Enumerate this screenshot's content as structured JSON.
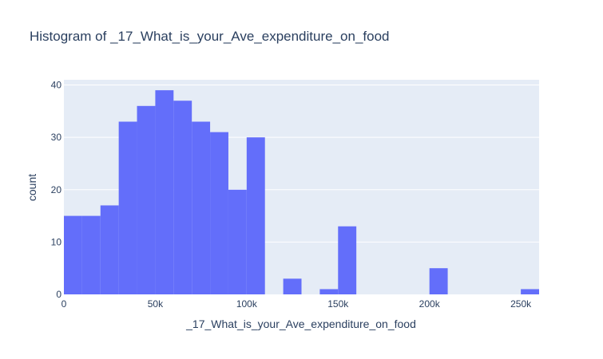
{
  "chart_data": {
    "type": "bar",
    "title": "Histogram of _17_What_is_your_Ave_expenditure_on_food",
    "xlabel": "_17_What_is_your_Ave_expenditure_on_food",
    "ylabel": "count",
    "xlim": [
      0,
      260000
    ],
    "ylim": [
      0,
      41
    ],
    "bin_width": 10000,
    "bins": [
      {
        "x0": 0,
        "x1": 10000,
        "count": 15
      },
      {
        "x0": 10000,
        "x1": 20000,
        "count": 15
      },
      {
        "x0": 20000,
        "x1": 30000,
        "count": 17
      },
      {
        "x0": 30000,
        "x1": 40000,
        "count": 33
      },
      {
        "x0": 40000,
        "x1": 50000,
        "count": 36
      },
      {
        "x0": 50000,
        "x1": 60000,
        "count": 39
      },
      {
        "x0": 60000,
        "x1": 70000,
        "count": 37
      },
      {
        "x0": 70000,
        "x1": 80000,
        "count": 33
      },
      {
        "x0": 80000,
        "x1": 90000,
        "count": 31
      },
      {
        "x0": 90000,
        "x1": 100000,
        "count": 20
      },
      {
        "x0": 100000,
        "x1": 110000,
        "count": 30
      },
      {
        "x0": 120000,
        "x1": 130000,
        "count": 3
      },
      {
        "x0": 140000,
        "x1": 150000,
        "count": 1
      },
      {
        "x0": 150000,
        "x1": 160000,
        "count": 13
      },
      {
        "x0": 200000,
        "x1": 210000,
        "count": 5
      },
      {
        "x0": 250000,
        "x1": 260000,
        "count": 1
      }
    ],
    "xticks": [
      {
        "value": 0,
        "label": "0"
      },
      {
        "value": 50000,
        "label": "50k"
      },
      {
        "value": 100000,
        "label": "100k"
      },
      {
        "value": 150000,
        "label": "150k"
      },
      {
        "value": 200000,
        "label": "200k"
      },
      {
        "value": 250000,
        "label": "250k"
      }
    ],
    "yticks": [
      {
        "value": 0,
        "label": "0"
      },
      {
        "value": 10,
        "label": "10"
      },
      {
        "value": 20,
        "label": "20"
      },
      {
        "value": 30,
        "label": "30"
      },
      {
        "value": 40,
        "label": "40"
      }
    ],
    "grid": true,
    "colors": {
      "bar": "#636efa",
      "plot_bg": "#e5ecf6",
      "grid": "#ffffff",
      "text": "#2a3f5f"
    }
  }
}
